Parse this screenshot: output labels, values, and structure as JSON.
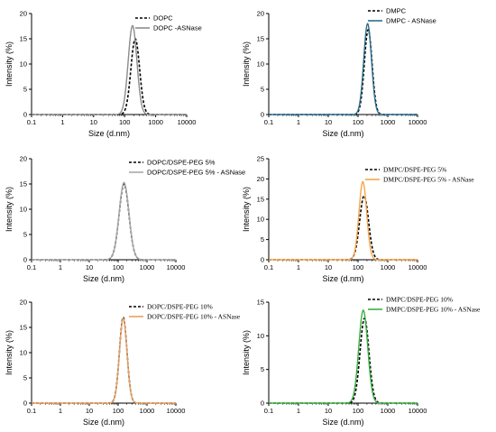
{
  "chart_data": [
    {
      "type": "line",
      "xscale": "log",
      "xlim": [
        0.1,
        10000
      ],
      "ylim": [
        0,
        20
      ],
      "yticks": [
        0,
        5,
        10,
        15,
        20
      ],
      "xticks": [
        "0.1",
        "1",
        "10",
        "100",
        "1000",
        "10000"
      ],
      "xlabel": "Size (d.nm)",
      "ylabel": "Intensity (%)",
      "grid": false,
      "legend": "top-right",
      "series": [
        {
          "name": "DOPC",
          "style": "dashed",
          "color": "#000000",
          "peak_x": 220,
          "peak_y": 15.0,
          "width": 0.14
        },
        {
          "name": "DOPC -ASNase",
          "style": "solid",
          "color": "#8c8c8c",
          "peak_x": 180,
          "peak_y": 17.6,
          "width": 0.14
        }
      ]
    },
    {
      "type": "line",
      "xscale": "log",
      "xlim": [
        0.1,
        10000
      ],
      "ylim": [
        0,
        20
      ],
      "yticks": [
        0,
        5,
        10,
        15,
        20
      ],
      "xticks": [
        "0.1",
        "1",
        "10",
        "100",
        "1000",
        "10000"
      ],
      "xlabel": "Size (d.nm)",
      "ylabel": "Intensity (%)",
      "grid": false,
      "legend": "top-right",
      "series": [
        {
          "name": "DMPC",
          "style": "dashed",
          "color": "#000000",
          "peak_x": 220,
          "peak_y": 16.8,
          "width": 0.13
        },
        {
          "name": "DMPC - ASNase",
          "style": "solid",
          "color": "#2f6e8c",
          "peak_x": 210,
          "peak_y": 18.0,
          "width": 0.13
        }
      ]
    },
    {
      "type": "line",
      "xscale": "log",
      "xlim": [
        0.1,
        10000
      ],
      "ylim": [
        0,
        20
      ],
      "yticks": [
        0,
        5,
        10,
        15,
        20
      ],
      "xticks": [
        "0.1",
        "1",
        "10",
        "100",
        "1000",
        "10000"
      ],
      "xlabel": "Size (d.nm)",
      "ylabel": "Intensity (%)",
      "grid": false,
      "legend": "top-right",
      "series": [
        {
          "name": "DOPC/DSPE-PEG 5%",
          "style": "dashed",
          "color": "#000000",
          "peak_x": 160,
          "peak_y": 15.0,
          "width": 0.17
        },
        {
          "name": "DOPC/DSPE-PEG 5% - ASNase",
          "style": "solid",
          "color": "#a8a8a8",
          "peak_x": 160,
          "peak_y": 15.3,
          "width": 0.17
        }
      ]
    },
    {
      "type": "line",
      "xscale": "log",
      "xlim": [
        0.1,
        10000
      ],
      "ylim": [
        0,
        25
      ],
      "yticks": [
        0,
        5,
        10,
        15,
        20,
        25
      ],
      "xticks": [
        "0.1",
        "1",
        "10",
        "100",
        "1000",
        "10000"
      ],
      "xlabel": "Size (d.nm)",
      "ylabel": "Intensity (%)",
      "grid": false,
      "legend": "top-right",
      "series": [
        {
          "name": "DMPC/DSPE-PEG 5%",
          "style": "dashed",
          "color": "#000000",
          "peak_x": 160,
          "peak_y": 15.8,
          "width": 0.15
        },
        {
          "name": "DMPC/DSPE-PEG 5% - ASNase",
          "style": "solid",
          "color": "#f5a54a",
          "peak_x": 145,
          "peak_y": 19.3,
          "width": 0.13
        }
      ]
    },
    {
      "type": "line",
      "xscale": "log",
      "xlim": [
        0.1,
        10000
      ],
      "ylim": [
        0,
        20
      ],
      "yticks": [
        0,
        5,
        10,
        15,
        20
      ],
      "xticks": [
        "0.1",
        "1",
        "10",
        "100",
        "1000",
        "10000"
      ],
      "xlabel": "Size (d.nm)",
      "ylabel": "Intensity (%)",
      "grid": false,
      "legend": "top-right",
      "series": [
        {
          "name": "DOPC/DSPE-PEG 10%",
          "style": "dashed",
          "color": "#000000",
          "peak_x": 150,
          "peak_y": 17.0,
          "width": 0.13
        },
        {
          "name": "DOPC/DSPE-PEG 10% - ASNase",
          "style": "solid",
          "color": "#e8a060",
          "peak_x": 150,
          "peak_y": 16.8,
          "width": 0.13
        }
      ]
    },
    {
      "type": "line",
      "xscale": "log",
      "xlim": [
        0.1,
        10000
      ],
      "ylim": [
        0,
        15
      ],
      "yticks": [
        0,
        5,
        10,
        15
      ],
      "xticks": [
        "0.1",
        "1",
        "10",
        "100",
        "1000",
        "10000"
      ],
      "xlabel": "Size (d.nm)",
      "ylabel": "Intensity (%)",
      "grid": false,
      "legend": "top-right",
      "series": [
        {
          "name": "DMPC/DSPE-PEG 10%",
          "style": "dashed",
          "color": "#000000",
          "peak_x": 165,
          "peak_y": 12.6,
          "width": 0.15
        },
        {
          "name": "DMPC/DSPE-PEG 10% - ASNase",
          "style": "solid",
          "color": "#3cb043",
          "peak_x": 150,
          "peak_y": 13.8,
          "width": 0.15
        }
      ]
    }
  ]
}
